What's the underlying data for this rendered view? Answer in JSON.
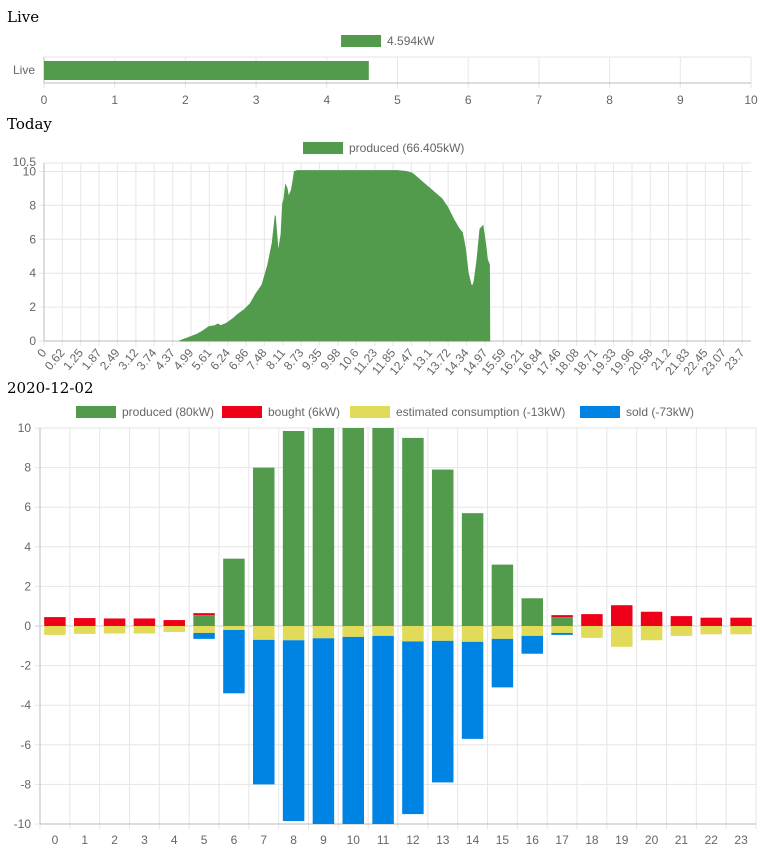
{
  "sections": {
    "live_title": "Live",
    "today_title": "Today",
    "history_title": "2020-12-02"
  },
  "colors": {
    "produced": "#529b4d",
    "bought": "#ef0019",
    "estimated": "#e2da59",
    "sold": "#0084e3",
    "grid": "#e6e6e6",
    "axis": "#bbbbbb"
  },
  "chart_data": [
    {
      "type": "bar",
      "orientation": "horizontal",
      "categories": [
        "Live"
      ],
      "series": [
        {
          "name": "4.594kW",
          "values": [
            4.594
          ]
        }
      ],
      "xlim": [
        0,
        10
      ],
      "xticks": [
        "0",
        "1",
        "2",
        "3",
        "4",
        "5",
        "6",
        "7",
        "8",
        "9",
        "10"
      ],
      "legend": "top"
    },
    {
      "type": "area",
      "series_name": "produced (66.405kW)",
      "ylim": [
        0,
        10.5
      ],
      "yticks": [
        "0",
        "2",
        "4",
        "6",
        "8",
        "10",
        "10.5"
      ],
      "xlim": [
        0,
        24
      ],
      "xticks": [
        "0",
        "0.62",
        "1.25",
        "1.87",
        "2.49",
        "3.12",
        "3.74",
        "4.37",
        "4.99",
        "5.61",
        "6.24",
        "6.86",
        "7.48",
        "8.11",
        "8.73",
        "9.35",
        "9.98",
        "10.6",
        "11.23",
        "11.85",
        "12.47",
        "13.1",
        "13.72",
        "14.34",
        "14.97",
        "15.59",
        "16.21",
        "16.84",
        "17.46",
        "18.08",
        "18.71",
        "19.33",
        "19.96",
        "20.58",
        "21.2",
        "21.83",
        "22.45",
        "23.07",
        "23.7"
      ],
      "x": [
        4.6,
        4.9,
        5.2,
        5.4,
        5.6,
        5.8,
        5.9,
        6.0,
        6.2,
        6.4,
        6.6,
        6.8,
        7.0,
        7.2,
        7.4,
        7.6,
        7.75,
        7.85,
        7.95,
        8.05,
        8.1,
        8.15,
        8.2,
        8.25,
        8.3,
        8.4,
        8.45,
        8.5,
        8.6,
        8.7,
        8.8,
        9.0,
        9.5,
        10.5,
        11.5,
        12.0,
        12.3,
        12.5,
        12.7,
        12.9,
        13.1,
        13.3,
        13.5,
        13.7,
        13.9,
        14.1,
        14.2,
        14.3,
        14.4,
        14.5,
        14.55,
        14.6,
        14.7,
        14.8,
        14.9,
        15.0,
        15.05,
        15.1,
        15.12,
        15.13
      ],
      "values": [
        0.0,
        0.2,
        0.4,
        0.6,
        0.85,
        0.9,
        1.0,
        0.9,
        1.05,
        1.3,
        1.6,
        1.85,
        2.2,
        2.8,
        3.3,
        4.5,
        5.8,
        7.4,
        5.2,
        6.3,
        8.1,
        8.4,
        9.2,
        9.0,
        8.5,
        8.9,
        9.4,
        10.0,
        10.05,
        10.05,
        10.05,
        10.05,
        10.05,
        10.05,
        10.05,
        10.05,
        10.0,
        9.9,
        9.6,
        9.3,
        9.0,
        8.7,
        8.4,
        7.9,
        7.2,
        6.6,
        6.4,
        5.5,
        4.0,
        3.3,
        3.25,
        3.5,
        4.8,
        6.6,
        6.8,
        5.6,
        4.8,
        4.6,
        4.5,
        0.0
      ],
      "legend": "top"
    },
    {
      "type": "bar",
      "stacked": true,
      "categories": [
        "0",
        "1",
        "2",
        "3",
        "4",
        "5",
        "6",
        "7",
        "8",
        "9",
        "10",
        "11",
        "12",
        "13",
        "14",
        "15",
        "16",
        "17",
        "18",
        "19",
        "20",
        "21",
        "22",
        "23"
      ],
      "ylim": [
        -10,
        10
      ],
      "yticks": [
        "-10",
        "-8",
        "-6",
        "-4",
        "-2",
        "0",
        "2",
        "4",
        "6",
        "8",
        "10"
      ],
      "series": [
        {
          "name": "produced (80kW)",
          "values": [
            0,
            0,
            0,
            0,
            0,
            0.55,
            3.4,
            8.0,
            9.85,
            10.0,
            10.0,
            10.0,
            9.5,
            7.9,
            5.7,
            3.1,
            1.4,
            0.45,
            0,
            0,
            0,
            0,
            0,
            0
          ]
        },
        {
          "name": "bought (6kW)",
          "values": [
            0.45,
            0.4,
            0.38,
            0.38,
            0.3,
            0.1,
            0,
            0,
            0,
            0,
            0,
            0,
            0,
            0,
            0,
            0,
            0,
            0.1,
            0.6,
            1.05,
            0.72,
            0.5,
            0.42,
            0.42
          ]
        },
        {
          "name": "estimated consumption (-13kW)",
          "values": [
            -0.45,
            -0.4,
            -0.38,
            -0.38,
            -0.3,
            -0.35,
            -0.2,
            -0.7,
            -0.72,
            -0.62,
            -0.55,
            -0.5,
            -0.78,
            -0.75,
            -0.8,
            -0.65,
            -0.5,
            -0.35,
            -0.6,
            -1.05,
            -0.72,
            -0.5,
            -0.42,
            -0.42
          ]
        },
        {
          "name": "sold (-73kW)",
          "values": [
            0,
            0,
            0,
            0,
            0,
            -0.3,
            -3.2,
            -7.3,
            -9.13,
            -9.38,
            -9.45,
            -9.5,
            -8.72,
            -7.15,
            -4.9,
            -2.45,
            -0.9,
            -0.1,
            0,
            0,
            0,
            0,
            0,
            0
          ]
        }
      ],
      "legend": "top"
    }
  ]
}
